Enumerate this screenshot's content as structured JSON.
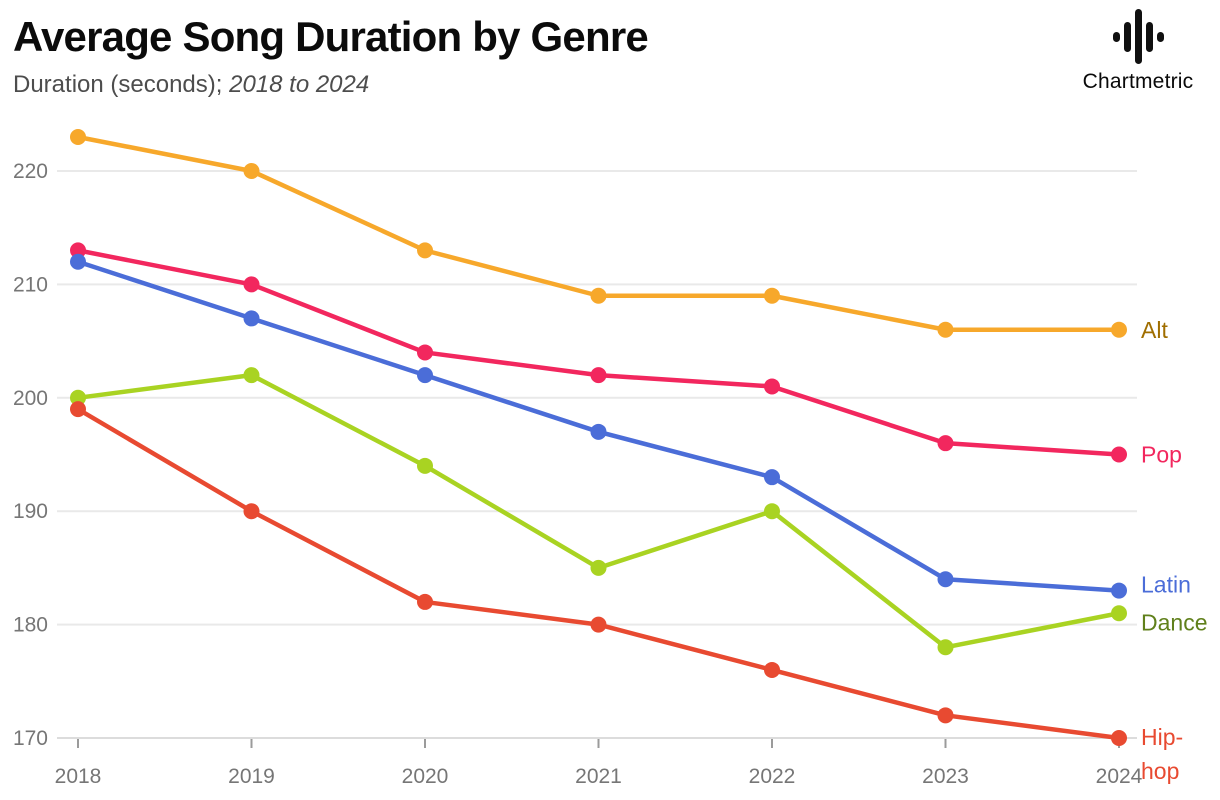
{
  "header": {
    "title": "Average Song Duration by Genre",
    "subtitle_plain": "Duration (seconds); ",
    "subtitle_italic": "2018 to 2024",
    "brand": "Chartmetric",
    "brand_icon": "waveform-icon"
  },
  "colors": {
    "background": "#ffffff",
    "title_text": "#0b0b0b",
    "subtitle_text": "#4d4d4d",
    "grid": "#e9e9e9",
    "axis_line": "#dcdcdc",
    "tick_mark": "#9b9b9b",
    "tick_text": "#767676"
  },
  "chart_data": {
    "type": "line",
    "title": "Average Song Duration by Genre",
    "ylabel": "Duration (seconds)",
    "xlabel": "",
    "x": [
      2018,
      2019,
      2020,
      2021,
      2022,
      2023,
      2024
    ],
    "ylim": [
      170,
      225
    ],
    "yticks": [
      170,
      180,
      190,
      200,
      210,
      220
    ],
    "grid": true,
    "legend_position": "right-end-labels",
    "series": [
      {
        "name": "Alt",
        "color": "#F7A82B",
        "label_color": "#A06E00",
        "values": [
          223,
          220,
          213,
          209,
          209,
          206,
          206
        ]
      },
      {
        "name": "Pop",
        "color": "#F2275E",
        "label_color": "#F2275E",
        "values": [
          213,
          210,
          204,
          202,
          201,
          196,
          195
        ]
      },
      {
        "name": "Latin",
        "color": "#4B6DD8",
        "label_color": "#4B6DD8",
        "values": [
          212,
          207,
          202,
          197,
          193,
          184,
          183
        ]
      },
      {
        "name": "Dance",
        "color": "#A9D322",
        "label_color": "#60801B",
        "values": [
          200,
          202,
          194,
          185,
          190,
          178,
          181
        ]
      },
      {
        "name": "Hip-hop",
        "color": "#E84A31",
        "label_color": "#E84A31",
        "values": [
          199,
          190,
          182,
          180,
          176,
          172,
          170
        ]
      }
    ]
  }
}
